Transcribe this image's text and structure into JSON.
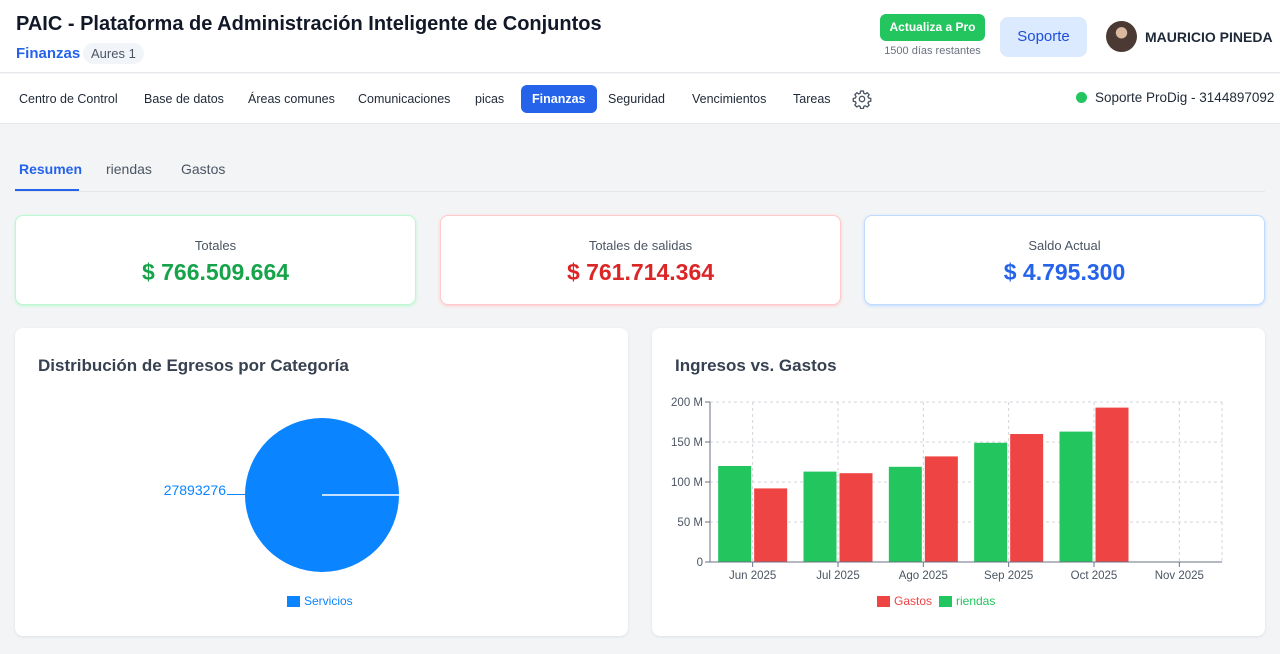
{
  "header": {
    "app_title": "PAIC - Plataforma de Administración Inteligente de Conjuntos",
    "module": "Finanzas",
    "complex": "Aures 1",
    "pro_button": "Actualiza a Pro",
    "days_left": "1500 días restantes",
    "support_button": "Soporte",
    "user_name": "MAURICIO PINEDA"
  },
  "nav": {
    "items": [
      "Centro de Control",
      "Base de datos",
      "Áreas comunes",
      "Comunicaciones",
      "picas",
      "Finanzas",
      "Seguridad",
      "Vencimientos",
      "Tareas"
    ],
    "active": "Finanzas",
    "settings_icon": "gear-icon",
    "support_contact": "Soporte ProDig - 3144897092"
  },
  "subtabs": {
    "items": [
      "Resumen",
      "riendas",
      "Gastos"
    ],
    "active": "Resumen"
  },
  "stats": [
    {
      "label": "Totales",
      "value": "$ 766.509.664",
      "color": "#16a34a",
      "border": "#bbf7d0"
    },
    {
      "label": "Totales de salidas",
      "value": "$ 761.714.364",
      "color": "#dc2626",
      "border": "#fecaca"
    },
    {
      "label": "Saldo Actual",
      "value": "$ 4.795.300",
      "color": "#2563eb",
      "border": "#bfdbfe"
    }
  ],
  "pie_card": {
    "title": "Distribución de Egresos por Categoría"
  },
  "bar_card": {
    "title": "Ingresos vs. Gastos"
  },
  "chart_data": [
    {
      "type": "pie",
      "slices": [
        {
          "label": "Servicios",
          "value": 27893276,
          "color": "#0a84ff"
        }
      ],
      "data_labels": [
        "27893276"
      ],
      "legend": [
        "Servicios"
      ],
      "legend_position": "bottom"
    },
    {
      "type": "bar",
      "categories": [
        "Jun 2025",
        "Jul 2025",
        "Ago 2025",
        "Sep 2025",
        "Oct 2025",
        "Nov 2025"
      ],
      "series": [
        {
          "name": "riendas",
          "color": "#22c55e",
          "values": [
            120,
            113,
            119,
            149,
            163,
            0
          ]
        },
        {
          "name": "Gastos",
          "color": "#ef4444",
          "values": [
            92,
            111,
            132,
            160,
            193,
            0
          ]
        }
      ],
      "units": "M",
      "ylim": [
        0,
        200
      ],
      "yticks": [
        "0",
        "50 M",
        "100 M",
        "150 M",
        "200 M"
      ],
      "grid": true,
      "legend": [
        "Gastos",
        "riendas"
      ],
      "legend_position": "bottom"
    }
  ]
}
